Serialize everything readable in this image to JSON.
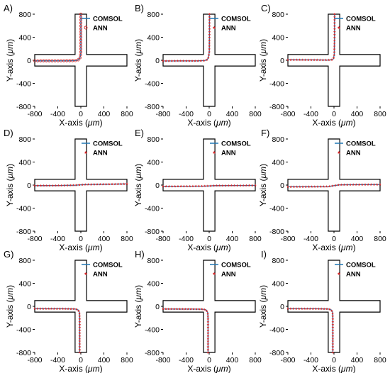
{
  "figure": {
    "panel_labels": [
      "A)",
      "B)",
      "C)",
      "D)",
      "E)",
      "F)",
      "G)",
      "H)",
      "I)"
    ],
    "xlabel": "X-axis (μm)",
    "ylabel": "Y-axis (μm)",
    "legend": {
      "series1": "COMSOL",
      "series2": "ANN"
    }
  },
  "colors": {
    "comsol": "#1f77b4",
    "ann": "#d62728",
    "channel": "#000000"
  },
  "chart_data": [
    {
      "panel": "A)",
      "type": "line",
      "xlim": [
        -800,
        800
      ],
      "ylim": [
        -800,
        800
      ],
      "xticks": [
        -800,
        -400,
        0,
        400,
        800
      ],
      "yticks": [
        -800,
        -400,
        0,
        400,
        800
      ],
      "xlabel": "X-axis (μm)",
      "ylabel": "Y-axis (μm)",
      "legend_position": "top-right",
      "ann_marker": "open-circle",
      "series": [
        {
          "name": "COMSOL",
          "x": [
            -800,
            -200,
            -80,
            -40,
            -15,
            0,
            0,
            0
          ],
          "y": [
            -10,
            -8,
            -5,
            10,
            40,
            120,
            500,
            800
          ]
        },
        {
          "name": "ANN",
          "x": [
            -800,
            -200,
            -80,
            -40,
            -15,
            0,
            0,
            0
          ],
          "y": [
            -10,
            -8,
            -5,
            10,
            40,
            120,
            500,
            800
          ]
        }
      ]
    },
    {
      "panel": "B)",
      "type": "line",
      "xlim": [
        -800,
        800
      ],
      "ylim": [
        -800,
        800
      ],
      "xticks": [
        -800,
        -400,
        0,
        400,
        800
      ],
      "yticks": [
        -800,
        -400,
        0,
        400,
        800
      ],
      "xlabel": "X-axis (μm)",
      "ylabel": "Y-axis (μm)",
      "legend_position": "top-right",
      "ann_marker": "star",
      "series": [
        {
          "name": "COMSOL",
          "x": [
            -800,
            -200,
            -80,
            -35,
            -12,
            2,
            5,
            5
          ],
          "y": [
            -12,
            -10,
            -5,
            10,
            50,
            150,
            500,
            800
          ]
        },
        {
          "name": "ANN",
          "x": [
            -800,
            -200,
            -80,
            -35,
            -12,
            2,
            5,
            5
          ],
          "y": [
            -12,
            -10,
            -5,
            10,
            50,
            150,
            500,
            800
          ]
        }
      ]
    },
    {
      "panel": "C)",
      "type": "line",
      "xlim": [
        -800,
        800
      ],
      "ylim": [
        -800,
        800
      ],
      "xticks": [
        -800,
        -400,
        0,
        400,
        800
      ],
      "yticks": [
        -800,
        -400,
        0,
        400,
        800
      ],
      "xlabel": "X-axis (μm)",
      "ylabel": "Y-axis (μm)",
      "legend_position": "top-right",
      "ann_marker": "star",
      "series": [
        {
          "name": "COMSOL",
          "x": [
            -800,
            -300,
            -100,
            -40,
            -10,
            5,
            10,
            10
          ],
          "y": [
            8,
            6,
            4,
            8,
            25,
            100,
            450,
            800
          ]
        },
        {
          "name": "ANN",
          "x": [
            -800,
            -300,
            -100,
            -40,
            -10,
            5,
            10,
            10
          ],
          "y": [
            8,
            6,
            4,
            8,
            25,
            100,
            450,
            800
          ]
        }
      ]
    },
    {
      "panel": "D)",
      "type": "line",
      "xlim": [
        -800,
        800
      ],
      "ylim": [
        -800,
        800
      ],
      "xticks": [
        -800,
        -400,
        0,
        400,
        800
      ],
      "yticks": [
        -800,
        -400,
        0,
        400,
        800
      ],
      "xlabel": "X-axis (μm)",
      "ylabel": "Y-axis (μm)",
      "legend_position": "top-right",
      "ann_marker": "star",
      "series": [
        {
          "name": "COMSOL",
          "x": [
            -800,
            -400,
            -100,
            0,
            100,
            400,
            800
          ],
          "y": [
            -10,
            -8,
            -3,
            5,
            10,
            15,
            20
          ]
        },
        {
          "name": "ANN",
          "x": [
            -800,
            -400,
            -100,
            0,
            100,
            400,
            800
          ],
          "y": [
            -10,
            -8,
            -3,
            5,
            10,
            15,
            20
          ]
        }
      ]
    },
    {
      "panel": "E)",
      "type": "line",
      "xlim": [
        -800,
        800
      ],
      "ylim": [
        -800,
        800
      ],
      "xticks": [
        -800,
        -400,
        0,
        400,
        800
      ],
      "yticks": [
        -800,
        -400,
        0,
        400,
        800
      ],
      "xlabel": "X-axis (μm)",
      "ylabel": "Y-axis (μm)",
      "legend_position": "top-right",
      "ann_marker": "star",
      "series": [
        {
          "name": "COMSOL",
          "x": [
            -800,
            -400,
            -100,
            0,
            100,
            400,
            800
          ],
          "y": [
            -22,
            -20,
            -18,
            -15,
            -10,
            -8,
            -6
          ]
        },
        {
          "name": "ANN",
          "x": [
            -800,
            -400,
            -100,
            0,
            100,
            400,
            800
          ],
          "y": [
            -22,
            -20,
            -18,
            -15,
            -10,
            -8,
            -6
          ]
        }
      ]
    },
    {
      "panel": "F)",
      "type": "line",
      "xlim": [
        -800,
        800
      ],
      "ylim": [
        -800,
        800
      ],
      "xticks": [
        -800,
        -400,
        0,
        400,
        800
      ],
      "yticks": [
        -800,
        -400,
        0,
        400,
        800
      ],
      "xlabel": "X-axis (μm)",
      "ylabel": "Y-axis (μm)",
      "legend_position": "top-right",
      "ann_marker": "star",
      "series": [
        {
          "name": "COMSOL",
          "x": [
            -800,
            -400,
            -100,
            0,
            100,
            400,
            800
          ],
          "y": [
            -30,
            -28,
            -25,
            -10,
            5,
            8,
            10
          ]
        },
        {
          "name": "ANN",
          "x": [
            -800,
            -400,
            -100,
            0,
            100,
            400,
            800
          ],
          "y": [
            -30,
            -28,
            -25,
            -10,
            5,
            8,
            10
          ]
        }
      ]
    },
    {
      "panel": "G)",
      "type": "line",
      "xlim": [
        -800,
        800
      ],
      "ylim": [
        -800,
        800
      ],
      "xticks": [
        -800,
        -400,
        0,
        400,
        800
      ],
      "yticks": [
        -800,
        -400,
        0,
        400,
        800
      ],
      "xlabel": "X-axis (μm)",
      "ylabel": "Y-axis (μm)",
      "legend_position": "top-right",
      "ann_marker": "star",
      "series": [
        {
          "name": "COMSOL",
          "x": [
            -800,
            -300,
            -100,
            -50,
            -25,
            -20,
            -20,
            -20
          ],
          "y": [
            -40,
            -42,
            -45,
            -60,
            -100,
            -200,
            -500,
            -800
          ]
        },
        {
          "name": "ANN",
          "x": [
            -800,
            -300,
            -100,
            -50,
            -25,
            -20,
            -20,
            -20
          ],
          "y": [
            -40,
            -42,
            -45,
            -60,
            -100,
            -200,
            -500,
            -800
          ]
        }
      ]
    },
    {
      "panel": "H)",
      "type": "line",
      "xlim": [
        -800,
        800
      ],
      "ylim": [
        -800,
        800
      ],
      "xticks": [
        -800,
        -400,
        0,
        400,
        800
      ],
      "yticks": [
        -800,
        -400,
        0,
        400,
        800
      ],
      "xlabel": "X-axis (μm)",
      "ylabel": "Y-axis (μm)",
      "legend_position": "top-right",
      "ann_marker": "star",
      "series": [
        {
          "name": "COMSOL",
          "x": [
            -800,
            -300,
            -100,
            -50,
            -25,
            -20,
            -20,
            -20
          ],
          "y": [
            -45,
            -48,
            -50,
            -65,
            -110,
            -200,
            -500,
            -800
          ]
        },
        {
          "name": "ANN",
          "x": [
            -800,
            -300,
            -100,
            -50,
            -25,
            -20,
            -20,
            -20
          ],
          "y": [
            -45,
            -48,
            -50,
            -65,
            -110,
            -200,
            -500,
            -800
          ]
        }
      ]
    },
    {
      "panel": "I)",
      "type": "line",
      "xlim": [
        -800,
        800
      ],
      "ylim": [
        -800,
        800
      ],
      "xticks": [
        -800,
        -400,
        0,
        400,
        800
      ],
      "yticks": [
        -800,
        -400,
        0,
        400,
        800
      ],
      "xlabel": "X-axis (μm)",
      "ylabel": "Y-axis (μm)",
      "legend_position": "top-right",
      "ann_marker": "star",
      "series": [
        {
          "name": "COMSOL",
          "x": [
            -800,
            -300,
            -100,
            -50,
            -25,
            -20,
            -20,
            -20
          ],
          "y": [
            -40,
            -42,
            -45,
            -60,
            -100,
            -200,
            -500,
            -800
          ]
        },
        {
          "name": "ANN",
          "x": [
            -800,
            -300,
            -100,
            -50,
            -25,
            -20,
            -20,
            -20
          ],
          "y": [
            -40,
            -42,
            -45,
            -60,
            -100,
            -200,
            -500,
            -800
          ]
        }
      ]
    }
  ]
}
